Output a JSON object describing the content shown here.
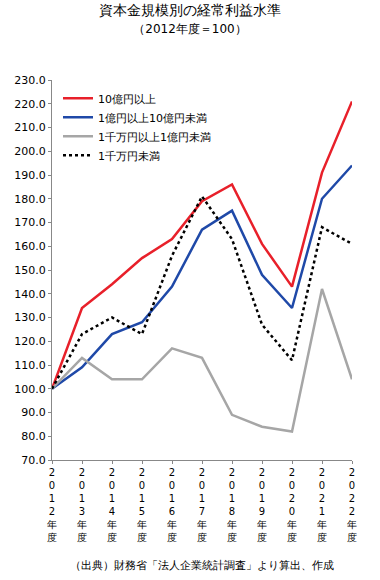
{
  "chart_data": {
    "type": "line",
    "title": "資本金規模別の経常利益水準",
    "subtitle": "（2012年度＝100）",
    "annotations": [
      "（出典）財務省「法人企業統計調査」より算出、作成"
    ],
    "categories": [
      "2012年度",
      "2013年度",
      "2014年度",
      "2015年度",
      "2016年度",
      "2017年度",
      "2018年度",
      "2019年度",
      "2020年度",
      "2021年度",
      "2022年度"
    ],
    "series": [
      {
        "name": "10億円以上",
        "color": "#e8202a",
        "line_style": "solid",
        "values": [
          100,
          134,
          144,
          155,
          163,
          179,
          186,
          161,
          143,
          191,
          221
        ]
      },
      {
        "name": "1億円以上10億円未満",
        "color": "#1f49a8",
        "line_style": "solid",
        "values": [
          100,
          109,
          123,
          128,
          143,
          167,
          175,
          148,
          134,
          180,
          194
        ]
      },
      {
        "name": "1千万円以上1億円未満",
        "color": "#a6a6a6",
        "line_style": "solid",
        "values": [
          100,
          113,
          104,
          104,
          117,
          113,
          89,
          84,
          82,
          142,
          104
        ]
      },
      {
        "name": "1千万円未満",
        "color": "#000000",
        "line_style": "dot",
        "values": [
          100,
          123,
          130,
          123,
          156,
          181,
          163,
          127,
          112,
          168,
          161
        ]
      }
    ],
    "ylim": [
      70,
      230
    ],
    "yticks": [
      {
        "value": 70,
        "label": "70.0"
      },
      {
        "value": 80,
        "label": "80.0"
      },
      {
        "value": 90,
        "label": "90.0"
      },
      {
        "value": 100,
        "label": "100.0"
      },
      {
        "value": 110,
        "label": "110.0"
      },
      {
        "value": 120,
        "label": "120.0"
      },
      {
        "value": 130,
        "label": "130.0"
      },
      {
        "value": 140,
        "label": "140.0"
      },
      {
        "value": 150,
        "label": "150.0"
      },
      {
        "value": 160,
        "label": "160.0"
      },
      {
        "value": 170,
        "label": "170.0"
      },
      {
        "value": 180,
        "label": "180.0"
      },
      {
        "value": 190,
        "label": "190.0"
      },
      {
        "value": 200,
        "label": "200.0"
      },
      {
        "value": 210,
        "label": "210.0"
      },
      {
        "value": 220,
        "label": "220.0"
      },
      {
        "value": 230,
        "label": "230.0"
      }
    ],
    "grid": false,
    "legend": "upper left"
  }
}
